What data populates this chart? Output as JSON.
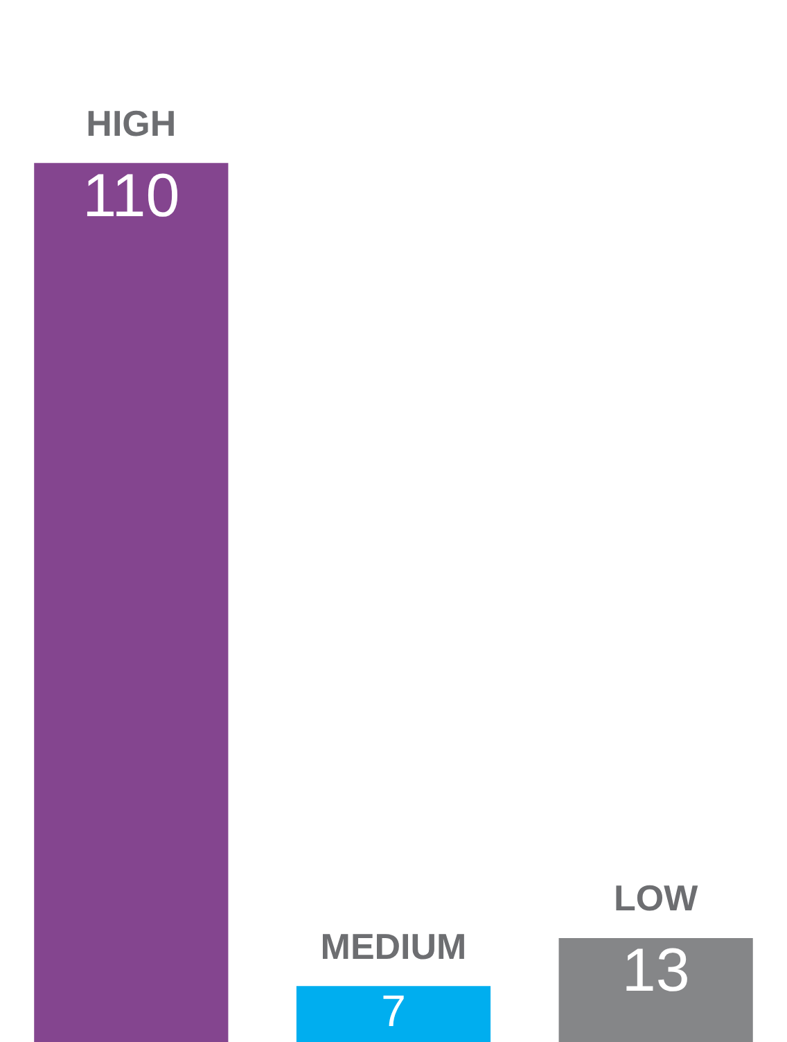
{
  "chart_data": {
    "type": "bar",
    "categories": [
      "HIGH",
      "MEDIUM",
      "LOW"
    ],
    "values": [
      110,
      7,
      13
    ],
    "colors": [
      "#84458f",
      "#00aeef",
      "#858688"
    ],
    "data_labels": true
  }
}
